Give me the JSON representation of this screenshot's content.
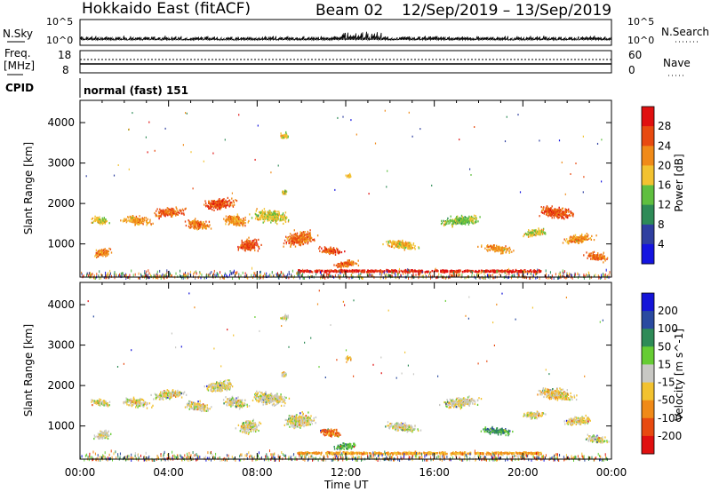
{
  "header": {
    "title": "Hokkaido East (fitACF)",
    "beam": "Beam 02",
    "date_range": "12/Sep/2019 – 13/Sep/2019"
  },
  "nsky_panel": {
    "left_label": "N.Sky",
    "right_label": "N.Search",
    "left_ticks": [
      "10^5",
      "10^0"
    ],
    "right_ticks": [
      "10^5",
      "10^0"
    ]
  },
  "freq_panel": {
    "label_top": "Freq.",
    "label_unit": "[MHz]",
    "left_ticks": [
      "18",
      "8"
    ],
    "right_label": "Nave",
    "right_ticks": [
      "60",
      "0"
    ]
  },
  "cpid_panel": {
    "label": "CPID",
    "text": "normal (fast) 151"
  },
  "chart_data": [
    {
      "type": "heatmap",
      "name": "Power",
      "ylabel": "Slant Range [km]",
      "yticks": [
        1000,
        2000,
        3000,
        4000
      ],
      "ylim": [
        180,
        4550
      ],
      "xlim": [
        0,
        24
      ],
      "colorbar_label": "Power [dB]",
      "colorbar_ticks": [
        4,
        8,
        12,
        16,
        20,
        24,
        28
      ],
      "colorbar_range": [
        0,
        32
      ],
      "colors": [
        "#1414e0",
        "#2f3fa0",
        "#2e8b57",
        "#5fbf3f",
        "#f2c230",
        "#f08a18",
        "#e84a10",
        "#e01010"
      ],
      "features": [
        {
          "t": 0.9,
          "r": 1600,
          "w": 0.8,
          "h": 120,
          "level": 0.55
        },
        {
          "t": 1.0,
          "r": 800,
          "w": 0.7,
          "h": 150,
          "level": 0.75
        },
        {
          "t": 2.5,
          "r": 1600,
          "w": 1.2,
          "h": 150,
          "level": 0.7
        },
        {
          "t": 4.0,
          "r": 1800,
          "w": 1.3,
          "h": 160,
          "level": 0.8
        },
        {
          "t": 5.3,
          "r": 1500,
          "w": 1.0,
          "h": 180,
          "level": 0.75
        },
        {
          "t": 6.3,
          "r": 2000,
          "w": 1.3,
          "h": 180,
          "level": 0.85
        },
        {
          "t": 7.0,
          "r": 1600,
          "w": 1.0,
          "h": 200,
          "level": 0.7
        },
        {
          "t": 7.6,
          "r": 1000,
          "w": 0.9,
          "h": 220,
          "level": 0.85
        },
        {
          "t": 8.6,
          "r": 1700,
          "w": 1.5,
          "h": 220,
          "level": 0.55
        },
        {
          "t": 9.9,
          "r": 1150,
          "w": 1.2,
          "h": 260,
          "level": 0.8
        },
        {
          "t": 11.3,
          "r": 850,
          "w": 1.0,
          "h": 130,
          "level": 0.85
        },
        {
          "t": 12.0,
          "r": 520,
          "w": 1.0,
          "h": 120,
          "level": 0.8
        },
        {
          "t": 14.5,
          "r": 1000,
          "w": 1.4,
          "h": 150,
          "level": 0.6
        },
        {
          "t": 17.2,
          "r": 1600,
          "w": 1.5,
          "h": 180,
          "level": 0.45
        },
        {
          "t": 18.8,
          "r": 900,
          "w": 1.3,
          "h": 120,
          "level": 0.7
        },
        {
          "t": 20.5,
          "r": 1300,
          "w": 1.0,
          "h": 130,
          "level": 0.55
        },
        {
          "t": 21.5,
          "r": 1800,
          "w": 1.5,
          "h": 200,
          "level": 0.85
        },
        {
          "t": 22.5,
          "r": 1150,
          "w": 1.2,
          "h": 150,
          "level": 0.7
        },
        {
          "t": 23.3,
          "r": 700,
          "w": 0.9,
          "h": 150,
          "level": 0.8
        },
        {
          "t": 9.2,
          "r": 3700,
          "w": 0.4,
          "h": 100,
          "level": 0.55
        },
        {
          "t": 12.1,
          "r": 2700,
          "w": 0.3,
          "h": 80,
          "level": 0.6
        },
        {
          "t": 9.2,
          "r": 2300,
          "w": 0.3,
          "h": 80,
          "level": 0.55
        }
      ],
      "ground_band": {
        "t0": 9.8,
        "t1": 20.8,
        "r": 350,
        "level": 0.95
      }
    },
    {
      "type": "heatmap",
      "name": "Velocity",
      "ylabel": "Slant Range [km]",
      "yticks": [
        1000,
        2000,
        3000,
        4000
      ],
      "ylim": [
        180,
        4550
      ],
      "xlim": [
        0,
        24
      ],
      "xticks": [
        "00:00",
        "04:00",
        "08:00",
        "12:00",
        "16:00",
        "20:00",
        "00:00"
      ],
      "xlabel": "Time UT",
      "colorbar_label": "Velocity [m s^-1]",
      "colorbar_ticks": [
        "200",
        "100",
        "50",
        "15",
        "-15",
        "-50",
        "-100",
        "-200"
      ],
      "colors": [
        "#1414d8",
        "#2a4aa0",
        "#2e8b57",
        "#66cc33",
        "#c8c8c4",
        "#f2c230",
        "#f08a18",
        "#e84a10",
        "#e01010"
      ],
      "features": [
        {
          "t": 0.9,
          "r": 1600,
          "w": 0.8,
          "h": 120,
          "level": 0.55
        },
        {
          "t": 1.0,
          "r": 800,
          "w": 0.7,
          "h": 150,
          "level": 0.55
        },
        {
          "t": 2.5,
          "r": 1600,
          "w": 1.2,
          "h": 150,
          "level": 0.55
        },
        {
          "t": 4.0,
          "r": 1800,
          "w": 1.3,
          "h": 160,
          "level": 0.55
        },
        {
          "t": 5.3,
          "r": 1500,
          "w": 1.0,
          "h": 180,
          "level": 0.55
        },
        {
          "t": 6.3,
          "r": 2000,
          "w": 1.3,
          "h": 180,
          "level": 0.55
        },
        {
          "t": 7.0,
          "r": 1600,
          "w": 1.0,
          "h": 200,
          "level": 0.55
        },
        {
          "t": 7.6,
          "r": 1000,
          "w": 0.9,
          "h": 220,
          "level": 0.55
        },
        {
          "t": 8.6,
          "r": 1700,
          "w": 1.5,
          "h": 220,
          "level": 0.55
        },
        {
          "t": 9.9,
          "r": 1150,
          "w": 1.2,
          "h": 260,
          "level": 0.55
        },
        {
          "t": 11.3,
          "r": 850,
          "w": 1.0,
          "h": 130,
          "level": 0.8
        },
        {
          "t": 12.0,
          "r": 520,
          "w": 1.0,
          "h": 120,
          "level": 0.3
        },
        {
          "t": 14.5,
          "r": 1000,
          "w": 1.4,
          "h": 150,
          "level": 0.55
        },
        {
          "t": 17.2,
          "r": 1600,
          "w": 1.5,
          "h": 180,
          "level": 0.55
        },
        {
          "t": 18.8,
          "r": 900,
          "w": 1.3,
          "h": 120,
          "level": 0.3
        },
        {
          "t": 20.5,
          "r": 1300,
          "w": 1.0,
          "h": 130,
          "level": 0.55
        },
        {
          "t": 21.5,
          "r": 1800,
          "w": 1.5,
          "h": 200,
          "level": 0.6
        },
        {
          "t": 22.5,
          "r": 1150,
          "w": 1.2,
          "h": 150,
          "level": 0.55
        },
        {
          "t": 23.3,
          "r": 700,
          "w": 0.9,
          "h": 150,
          "level": 0.55
        },
        {
          "t": 9.2,
          "r": 3700,
          "w": 0.4,
          "h": 100,
          "level": 0.55
        },
        {
          "t": 12.1,
          "r": 2700,
          "w": 0.3,
          "h": 80,
          "level": 0.65
        },
        {
          "t": 9.2,
          "r": 2300,
          "w": 0.3,
          "h": 80,
          "level": 0.55
        }
      ],
      "ground_band": {
        "t0": 9.8,
        "t1": 20.8,
        "r": 350,
        "level": 0.7
      }
    }
  ]
}
